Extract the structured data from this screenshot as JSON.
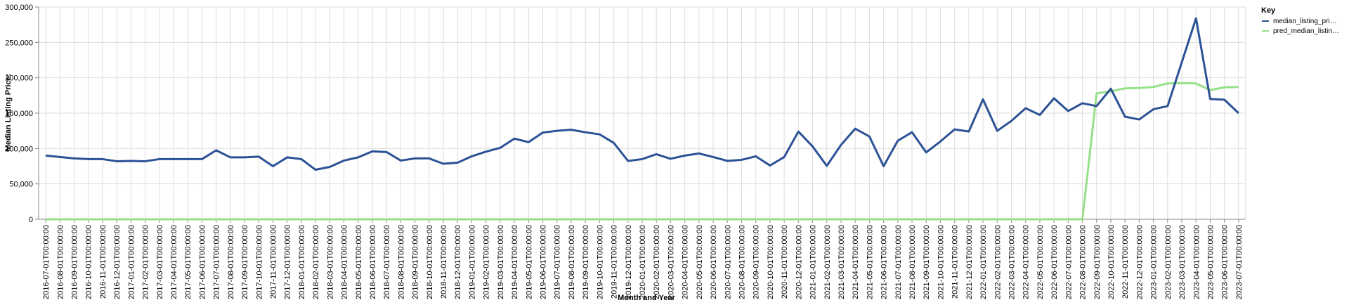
{
  "chart_data": {
    "type": "line",
    "xlabel": "Month and Year",
    "ylabel": "Median Listing Price:",
    "ylim": [
      0,
      300000
    ],
    "yticks": [
      "0",
      "50,000",
      "100,000",
      "150,000",
      "200,000",
      "250,000",
      "300,000"
    ],
    "grid": true,
    "legend": {
      "title": "Key",
      "placement": "top-right",
      "entries": [
        "median_listing_pri…",
        "pred_median_listin…"
      ]
    },
    "categories": [
      "2016-07-01T00:00:00",
      "2016-08-01T00:00:00",
      "2016-09-01T00:00:00",
      "2016-10-01T00:00:00",
      "2016-11-01T00:00:00",
      "2016-12-01T00:00:00",
      "2017-01-01T00:00:00",
      "2017-02-01T00:00:00",
      "2017-03-01T00:00:00",
      "2017-04-01T00:00:00",
      "2017-05-01T00:00:00",
      "2017-06-01T00:00:00",
      "2017-07-01T00:00:00",
      "2017-08-01T00:00:00",
      "2017-09-01T00:00:00",
      "2017-10-01T00:00:00",
      "2017-11-01T00:00:00",
      "2017-12-01T00:00:00",
      "2018-01-01T00:00:00",
      "2018-02-01T00:00:00",
      "2018-03-01T00:00:00",
      "2018-04-01T00:00:00",
      "2018-05-01T00:00:00",
      "2018-06-01T00:00:00",
      "2018-07-01T00:00:00",
      "2018-08-01T00:00:00",
      "2018-09-01T00:00:00",
      "2018-10-01T00:00:00",
      "2018-11-01T00:00:00",
      "2018-12-01T00:00:00",
      "2019-01-01T00:00:00",
      "2019-02-01T00:00:00",
      "2019-03-01T00:00:00",
      "2019-04-01T00:00:00",
      "2019-05-01T00:00:00",
      "2019-06-01T00:00:00",
      "2019-07-01T00:00:00",
      "2019-08-01T00:00:00",
      "2019-09-01T00:00:00",
      "2019-10-01T00:00:00",
      "2019-11-01T00:00:00",
      "2019-12-01T00:00:00",
      "2020-01-01T00:00:00",
      "2020-02-01T00:00:00",
      "2020-03-01T00:00:00",
      "2020-04-01T00:00:00",
      "2020-05-01T00:00:00",
      "2020-06-01T00:00:00",
      "2020-07-01T00:00:00",
      "2020-08-01T00:00:00",
      "2020-09-01T00:00:00",
      "2020-10-01T00:00:00",
      "2020-11-01T00:00:00",
      "2020-12-01T00:00:00",
      "2021-01-01T00:00:00",
      "2021-02-01T00:00:00",
      "2021-03-01T00:00:00",
      "2021-04-01T00:00:00",
      "2021-05-01T00:00:00",
      "2021-06-01T00:00:00",
      "2021-07-01T00:00:00",
      "2021-08-01T00:00:00",
      "2021-09-01T00:00:00",
      "2021-10-01T00:00:00",
      "2021-11-01T00:00:00",
      "2021-12-01T00:00:00",
      "2022-01-01T00:00:00",
      "2022-02-01T00:00:00",
      "2022-03-01T00:00:00",
      "2022-04-01T00:00:00",
      "2022-05-01T00:00:00",
      "2022-06-01T00:00:00",
      "2022-07-01T00:00:00",
      "2022-08-01T00:00:00",
      "2022-09-01T00:00:00",
      "2022-10-01T00:00:00",
      "2022-11-01T00:00:00",
      "2022-12-01T00:00:00",
      "2023-01-01T00:00:00",
      "2023-02-01T00:00:00",
      "2023-03-01T00:00:00",
      "2023-04-01T00:00:00",
      "2023-05-01T00:00:00",
      "2023-06-01T00:00:00",
      "2023-07-01T00:00:00"
    ],
    "series": [
      {
        "name": "median_listing_pri…",
        "color": "#2c5296",
        "values": [
          90000,
          88000,
          86000,
          85000,
          85000,
          82000,
          82500,
          82000,
          85000,
          85000,
          85000,
          85000,
          97500,
          87500,
          87500,
          88500,
          75000,
          87500,
          85000,
          70000,
          74000,
          83000,
          87500,
          96000,
          95000,
          83000,
          86000,
          86000,
          78500,
          80000,
          89000,
          95500,
          101000,
          114000,
          109000,
          122500,
          125000,
          126500,
          123000,
          120000,
          108000,
          82500,
          85000,
          92000,
          85500,
          90000,
          93000,
          88000,
          82500,
          84000,
          89000,
          76000,
          88000,
          124000,
          103000,
          75500,
          105000,
          128000,
          117000,
          75000,
          111000,
          123000,
          94500,
          110000,
          127000,
          124000,
          169500,
          125000,
          139000,
          157000,
          147500,
          171000,
          153000,
          164000,
          160000,
          184500,
          145000,
          141000,
          155500,
          160000,
          222000,
          284000,
          170000,
          169000,
          150000
        ]
      },
      {
        "name": "pred_median_listin…",
        "color": "#98df8a",
        "values": [
          0,
          0,
          0,
          0,
          0,
          0,
          0,
          0,
          0,
          0,
          0,
          0,
          0,
          0,
          0,
          0,
          0,
          0,
          0,
          0,
          0,
          0,
          0,
          0,
          0,
          0,
          0,
          0,
          0,
          0,
          0,
          0,
          0,
          0,
          0,
          0,
          0,
          0,
          0,
          0,
          0,
          0,
          0,
          0,
          0,
          0,
          0,
          0,
          0,
          0,
          0,
          0,
          0,
          0,
          0,
          0,
          0,
          0,
          0,
          0,
          0,
          0,
          0,
          0,
          0,
          0,
          0,
          0,
          0,
          0,
          0,
          0,
          0,
          0,
          178000,
          181000,
          185000,
          185500,
          187000,
          192000,
          192500,
          192000,
          182500,
          186500,
          187000
        ]
      }
    ]
  }
}
